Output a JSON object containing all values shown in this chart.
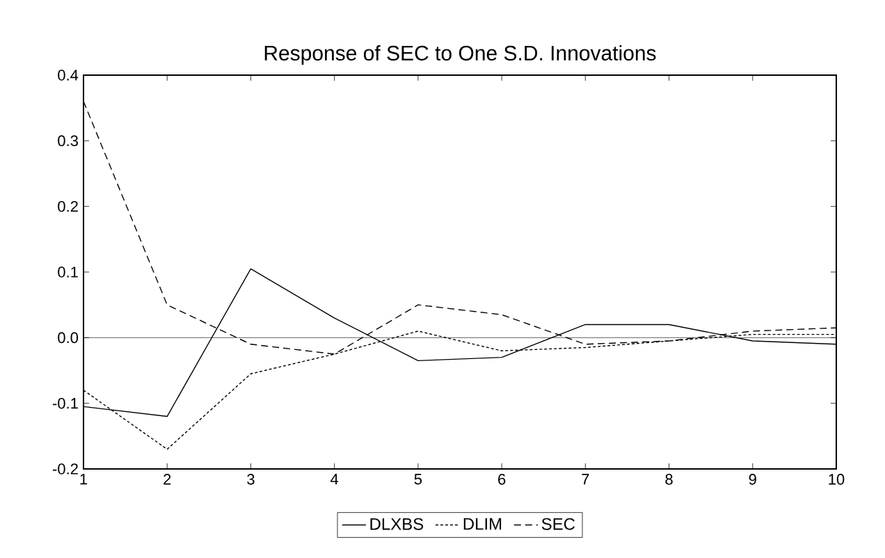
{
  "chart_data": {
    "type": "line",
    "title": "Response of SEC to One S.D. Innovations",
    "x": [
      1,
      2,
      3,
      4,
      5,
      6,
      7,
      8,
      9,
      10
    ],
    "series": [
      {
        "name": "DLXBS",
        "color": "#000000",
        "line_style": "solid",
        "values": [
          -0.105,
          -0.12,
          0.105,
          0.03,
          -0.035,
          -0.03,
          0.02,
          0.02,
          -0.005,
          -0.01
        ]
      },
      {
        "name": "DLIM",
        "color": "#000000",
        "line_style": "dotted",
        "values": [
          -0.08,
          -0.17,
          -0.055,
          -0.025,
          0.01,
          -0.02,
          -0.015,
          -0.005,
          0.005,
          0.005
        ]
      },
      {
        "name": "SEC",
        "color": "#000000",
        "line_style": "dashed",
        "values": [
          0.36,
          0.05,
          -0.01,
          -0.025,
          0.05,
          0.035,
          -0.01,
          -0.005,
          0.01,
          0.015
        ]
      }
    ],
    "xlim": [
      1,
      10
    ],
    "xticks": [
      1,
      2,
      3,
      4,
      5,
      6,
      7,
      8,
      9,
      10
    ],
    "ylim": [
      -0.2,
      0.4
    ],
    "yticks": [
      {
        "value": -0.2,
        "label": "-0.2"
      },
      {
        "value": -0.1,
        "label": "-0.1"
      },
      {
        "value": 0,
        "label": "0.0"
      },
      {
        "value": 0.1,
        "label": "0.1"
      },
      {
        "value": 0.2,
        "label": "0.2"
      },
      {
        "value": 0.3,
        "label": "0.3"
      },
      {
        "value": 0.4,
        "label": "0.4"
      }
    ],
    "ref_lines": [
      {
        "axis": "y",
        "value": 0,
        "color": "#000000"
      }
    ],
    "legend": "bottom",
    "grid": false,
    "marker": "none"
  }
}
